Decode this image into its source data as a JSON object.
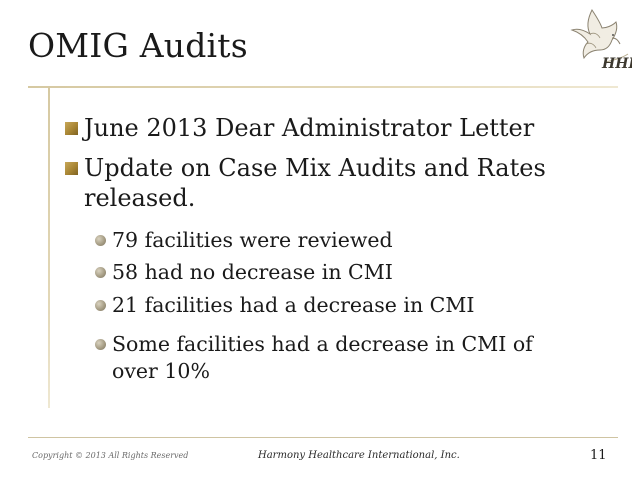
{
  "slide": {
    "title": "OMIG Audits",
    "bullets": [
      {
        "text": "June 2013 Dear Administrator Letter"
      },
      {
        "text": "Update on Case Mix Audits and Rates released."
      }
    ],
    "sub_bullets": [
      {
        "text": "79 facilities were reviewed"
      },
      {
        "text": "58 had no decrease in CMI"
      },
      {
        "text": "21 facilities had a decrease in CMI"
      },
      {
        "text": "Some facilities had a decrease in CMI of over 10%"
      }
    ],
    "logo": {
      "icon": "dove-logo-icon",
      "text": "HHI"
    }
  },
  "footer": {
    "copyright": "Copyright © 2013 All Rights Reserved",
    "company": "Harmony Healthcare International, Inc.",
    "page_number": "11"
  },
  "colors": {
    "accent_rule": "#d6c9a2",
    "level1_bullet": "#a88533",
    "level2_bullet": "#a69d85",
    "text": "#1a1a1a"
  }
}
